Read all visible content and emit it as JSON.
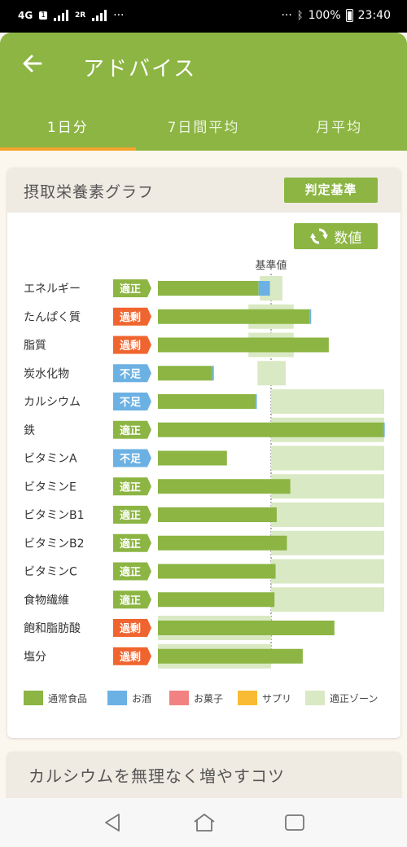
{
  "status_bar": {
    "network": "4G",
    "sim1": "1",
    "sim2": "2R",
    "dots_left": "···",
    "dots_right": "···",
    "battery": "100%",
    "time": "23:40"
  },
  "header": {
    "back_icon": "arrow-left-icon",
    "title": "アドバイス"
  },
  "tabs": [
    {
      "label": "1日分",
      "active": true
    },
    {
      "label": "7日間平均",
      "active": false
    },
    {
      "label": "月平均",
      "active": false
    }
  ],
  "card": {
    "title": "摂取栄養素グラフ",
    "criteria_button": "判定基準",
    "value_button": "数値",
    "value_icon": "refresh-icon"
  },
  "chart_data": {
    "type": "bar",
    "orientation": "horizontal",
    "reference_label": "基準値",
    "unit": "percent of reference value",
    "xlim": [
      0,
      200
    ],
    "rows": [
      {
        "name": "エネルギー",
        "status": "適正",
        "food": 89,
        "alcohol": 10,
        "zone": [
          90,
          110
        ]
      },
      {
        "name": "たんぱく質",
        "status": "過剰",
        "food": 134,
        "alcohol": 1,
        "zone": [
          80,
          120
        ]
      },
      {
        "name": "脂質",
        "status": "過剰",
        "food": 151,
        "alcohol": 0,
        "zone": [
          80,
          120
        ]
      },
      {
        "name": "炭水化物",
        "status": "不足",
        "food": 48,
        "alcohol": 1,
        "zone": [
          88,
          113
        ]
      },
      {
        "name": "カルシウム",
        "status": "不足",
        "food": 86,
        "alcohol": 1,
        "zone": [
          100,
          200
        ]
      },
      {
        "name": "鉄",
        "status": "適正",
        "food": 199,
        "alcohol": 1,
        "zone": [
          100,
          200
        ]
      },
      {
        "name": "ビタミンA",
        "status": "不足",
        "food": 61,
        "alcohol": 0,
        "zone": [
          100,
          200
        ]
      },
      {
        "name": "ビタミンE",
        "status": "適正",
        "food": 117,
        "alcohol": 0,
        "zone": [
          100,
          200
        ]
      },
      {
        "name": "ビタミンB1",
        "status": "適正",
        "food": 105,
        "alcohol": 0,
        "zone": [
          100,
          200
        ]
      },
      {
        "name": "ビタミンB2",
        "status": "適正",
        "food": 114,
        "alcohol": 0,
        "zone": [
          100,
          200
        ]
      },
      {
        "name": "ビタミンC",
        "status": "適正",
        "food": 104,
        "alcohol": 0,
        "zone": [
          100,
          200
        ]
      },
      {
        "name": "食物繊維",
        "status": "適正",
        "food": 103,
        "alcohol": 0,
        "zone": [
          100,
          200
        ]
      },
      {
        "name": "飽和脂肪酸",
        "status": "過剰",
        "food": 156,
        "alcohol": 0,
        "zone": [
          0,
          100
        ]
      },
      {
        "name": "塩分",
        "status": "過剰",
        "food": 128,
        "alcohol": 0,
        "zone": [
          0,
          100
        ]
      }
    ],
    "legend": [
      {
        "label": "通常食品",
        "color": "#8cb543"
      },
      {
        "label": "お酒",
        "color": "#6cb1e3"
      },
      {
        "label": "お菓子",
        "color": "#f28282"
      },
      {
        "label": "サプリ",
        "color": "#f9bb34"
      },
      {
        "label": "適正ゾーン",
        "color": "#d9e9c3"
      }
    ],
    "status_colors": {
      "適正": "#8cb543",
      "過剰": "#f0652f",
      "不足": "#6cb1e3"
    }
  },
  "card2": {
    "title": "カルシウムを無理なく増やすコツ"
  },
  "nav": {
    "back": "nav-back-icon",
    "home": "nav-home-icon",
    "recents": "nav-recents-icon"
  }
}
